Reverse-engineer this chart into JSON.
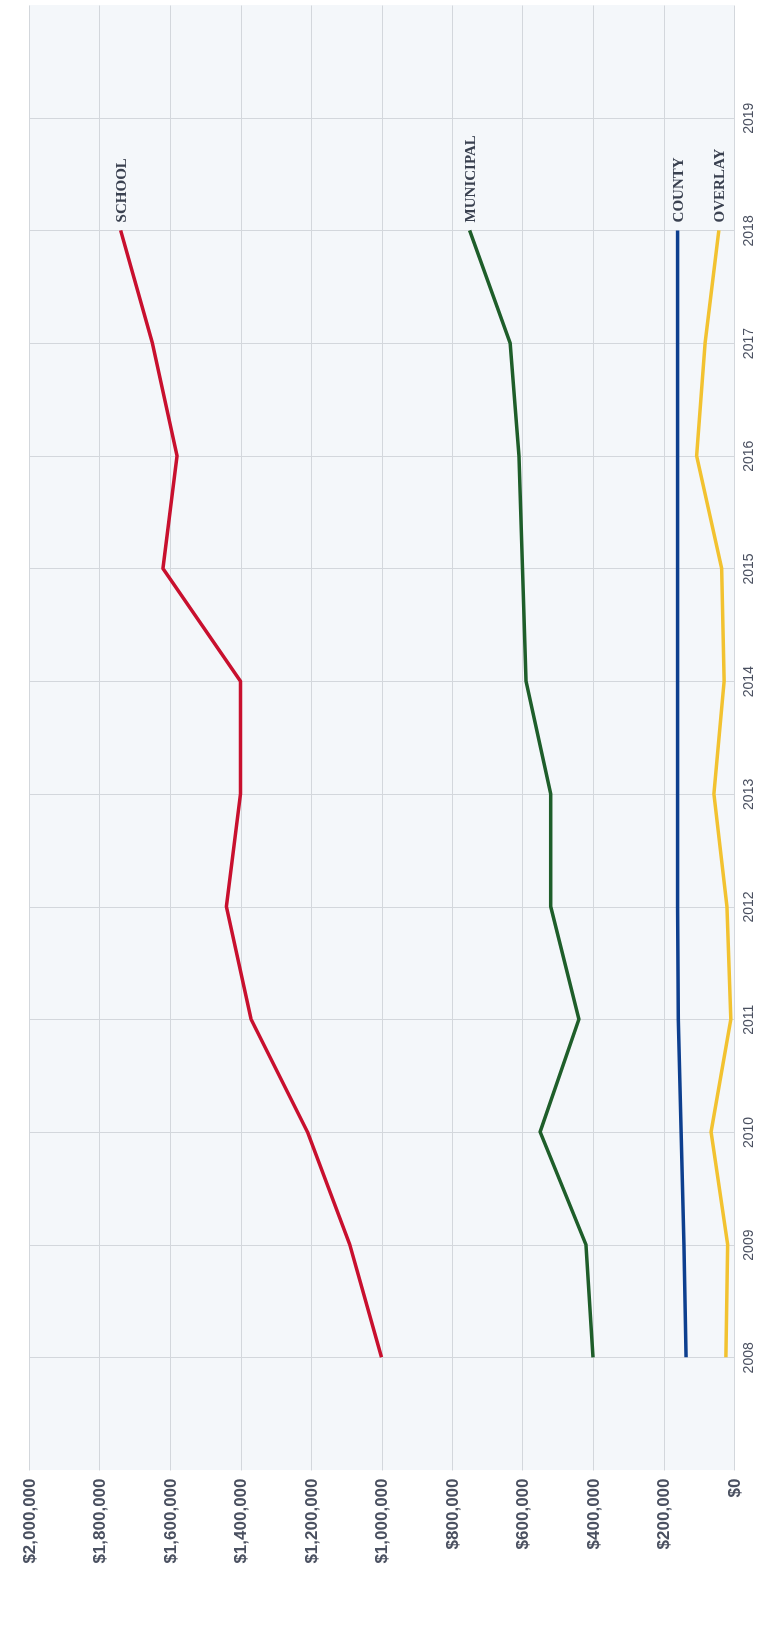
{
  "chart_data": {
    "type": "line",
    "ylim": [
      2007,
      2020
    ],
    "yticks": [
      2008,
      2009,
      2010,
      2011,
      2012,
      2013,
      2014,
      2015,
      2016,
      2017,
      2018,
      2019
    ],
    "xlim": [
      2000000,
      0
    ],
    "xticks": [
      {
        "value": 2000000,
        "label": "$2,000,000"
      },
      {
        "value": 1800000,
        "label": "$1,800,000"
      },
      {
        "value": 1600000,
        "label": "$1,600,000"
      },
      {
        "value": 1400000,
        "label": "$1,400,000"
      },
      {
        "value": 1200000,
        "label": "$1,200,000"
      },
      {
        "value": 1000000,
        "label": "$1,000,000"
      },
      {
        "value": 800000,
        "label": "$800,000"
      },
      {
        "value": 600000,
        "label": "$600,000"
      },
      {
        "value": 400000,
        "label": "$400,000"
      },
      {
        "value": 200000,
        "label": "$200,000"
      },
      {
        "value": 0,
        "label": "$0"
      }
    ],
    "grid": true,
    "marker": "none",
    "line_style": "solid",
    "series": [
      {
        "name": "SCHOOL",
        "color": "#c8102e",
        "x": [
          1000000,
          1090000,
          1210000,
          1370000,
          1440000,
          1400000,
          1400000,
          1620000,
          1580000,
          1650000,
          1740000
        ],
        "values": [
          2008,
          2009,
          2010,
          2011,
          2012,
          2013,
          2014,
          2015,
          2016,
          2017,
          2018
        ]
      },
      {
        "name": "MUNICIPAL",
        "color": "#1e5e2a",
        "x": [
          400000,
          420000,
          550000,
          440000,
          520000,
          520000,
          590000,
          600000,
          610000,
          635000,
          750000
        ],
        "values": [
          2008,
          2009,
          2010,
          2011,
          2012,
          2013,
          2014,
          2015,
          2016,
          2017,
          2018
        ]
      },
      {
        "name": "COUNTY",
        "color": "#0d3f8f",
        "x": [
          136000,
          142000,
          150000,
          158000,
          160000,
          160000,
          160000,
          160000,
          160000,
          160000,
          160000
        ],
        "values": [
          2008,
          2009,
          2010,
          2011,
          2012,
          2013,
          2014,
          2015,
          2016,
          2017,
          2018
        ]
      },
      {
        "name": "OVERLAY",
        "color": "#f2c230",
        "x": [
          23000,
          18000,
          65000,
          9000,
          20000,
          57000,
          28000,
          35000,
          106000,
          82000,
          43000
        ],
        "values": [
          2008,
          2009,
          2010,
          2011,
          2012,
          2013,
          2014,
          2015,
          2016,
          2017,
          2018
        ]
      }
    ]
  }
}
